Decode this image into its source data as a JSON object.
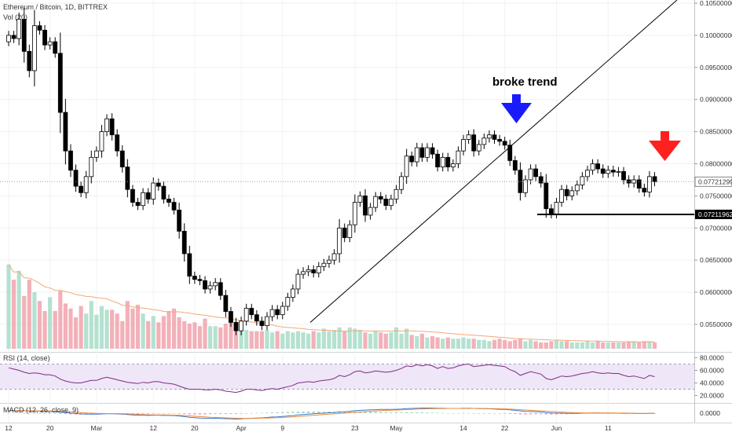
{
  "header": {
    "symbol_line": "Ethereum / Bitcoin, 1D, BITTREX",
    "volume_label": "Vol (20)",
    "rsi_label": "RSI (14, close)",
    "macd_label": "MACD (12, 26, close, 9)"
  },
  "annotations": {
    "broke_trend_text": "broke trend",
    "blue_arrow_color": "#1a1aff",
    "red_arrow_color": "#ff2020"
  },
  "colors": {
    "up_candle": "#ffffff",
    "down_candle": "#000000",
    "vol_up": "#a8dcc8",
    "vol_down": "#f0a3ad",
    "vol_ma": "#f2a878",
    "rsi_line": "#7b2d85",
    "rsi_band": "#efe6f7",
    "macd_line": "#3a78c9",
    "signal_line": "#f08a3a"
  },
  "chart_data": {
    "type": "candlestick",
    "title": "Ethereum / Bitcoin, 1D, BITTREX",
    "price_axis": {
      "ylim": [
        0.0512,
        0.1055
      ],
      "ticks": [
        "0.10500000",
        "0.10000000",
        "0.09500000",
        "0.09000000",
        "0.08500000",
        "0.08000000",
        "0.07500000",
        "0.07000000",
        "0.06500000",
        "0.06000000",
        "0.05500000"
      ],
      "tick_values": [
        0.105,
        0.1,
        0.095,
        0.09,
        0.085,
        0.08,
        0.075,
        0.07,
        0.065,
        0.06,
        0.055
      ],
      "last_price_label": "0.07721299",
      "last_price_value": 0.07721299,
      "support_label": "0.07211962",
      "support_value": 0.07211962
    },
    "x_axis": {
      "ticks": [
        "12",
        "20",
        "Mar",
        "12",
        "20",
        "Apr",
        "9",
        "23",
        "May",
        "14",
        "22",
        "Jun",
        "11"
      ],
      "tick_day_index": [
        0,
        8,
        17,
        28,
        36,
        45,
        53,
        67,
        75,
        88,
        96,
        106,
        116
      ]
    },
    "close": [
      0.1,
      0.0995,
      0.1025,
      0.0975,
      0.0945,
      0.1015,
      0.1008,
      0.0985,
      0.099,
      0.0972,
      0.088,
      0.082,
      0.079,
      0.0765,
      0.0755,
      0.078,
      0.081,
      0.082,
      0.085,
      0.087,
      0.0845,
      0.082,
      0.0795,
      0.076,
      0.074,
      0.0735,
      0.0755,
      0.0745,
      0.077,
      0.0765,
      0.0745,
      0.074,
      0.0728,
      0.0695,
      0.066,
      0.0625,
      0.062,
      0.0618,
      0.0605,
      0.061,
      0.0615,
      0.0595,
      0.057,
      0.0553,
      0.054,
      0.0555,
      0.0575,
      0.0565,
      0.0555,
      0.0548,
      0.0562,
      0.0573,
      0.0565,
      0.0578,
      0.0592,
      0.0605,
      0.0628,
      0.0632,
      0.0635,
      0.063,
      0.064,
      0.0645,
      0.065,
      0.066,
      0.07,
      0.0685,
      0.0705,
      0.074,
      0.075,
      0.072,
      0.0732,
      0.0749,
      0.0745,
      0.0735,
      0.0745,
      0.076,
      0.078,
      0.0812,
      0.0803,
      0.0825,
      0.081,
      0.0825,
      0.0815,
      0.0795,
      0.081,
      0.0795,
      0.08,
      0.082,
      0.0838,
      0.0845,
      0.082,
      0.083,
      0.084,
      0.0845,
      0.0838,
      0.0835,
      0.0829,
      0.0805,
      0.079,
      0.0755,
      0.0775,
      0.0792,
      0.078,
      0.077,
      0.073,
      0.0722,
      0.074,
      0.076,
      0.075,
      0.0758,
      0.0767,
      0.078,
      0.079,
      0.08,
      0.0792,
      0.0785,
      0.079,
      0.0787,
      0.0788,
      0.0775,
      0.077,
      0.0775,
      0.0762,
      0.0756,
      0.078,
      0.0772
    ],
    "volume": [
      0.67,
      0.55,
      0.62,
      0.42,
      0.55,
      0.45,
      0.38,
      0.3,
      0.41,
      0.3,
      0.46,
      0.36,
      0.32,
      0.25,
      0.34,
      0.28,
      0.38,
      0.27,
      0.34,
      0.31,
      0.31,
      0.28,
      0.22,
      0.38,
      0.32,
      0.35,
      0.28,
      0.22,
      0.26,
      0.21,
      0.26,
      0.3,
      0.32,
      0.25,
      0.22,
      0.2,
      0.21,
      0.18,
      0.24,
      0.18,
      0.18,
      0.17,
      0.2,
      0.22,
      0.2,
      0.16,
      0.15,
      0.14,
      0.14,
      0.14,
      0.15,
      0.13,
      0.14,
      0.12,
      0.14,
      0.13,
      0.14,
      0.13,
      0.12,
      0.14,
      0.13,
      0.16,
      0.14,
      0.15,
      0.17,
      0.14,
      0.17,
      0.16,
      0.15,
      0.13,
      0.12,
      0.14,
      0.13,
      0.12,
      0.13,
      0.17,
      0.12,
      0.16,
      0.11,
      0.1,
      0.12,
      0.09,
      0.1,
      0.09,
      0.08,
      0.09,
      0.08,
      0.08,
      0.09,
      0.08,
      0.08,
      0.07,
      0.07,
      0.06,
      0.07,
      0.08,
      0.07,
      0.06,
      0.07,
      0.08,
      0.06,
      0.07,
      0.06,
      0.05,
      0.05,
      0.06,
      0.07,
      0.06,
      0.06,
      0.05,
      0.05,
      0.05,
      0.06,
      0.05,
      0.06,
      0.05,
      0.05,
      0.05,
      0.05,
      0.05,
      0.06,
      0.06,
      0.05,
      0.06,
      0.06,
      0.05
    ],
    "rsi_axis": {
      "ticks": [
        "80.0000",
        "60.0000",
        "40.0000",
        "20.0000"
      ],
      "tick_values": [
        80,
        60,
        40,
        20
      ],
      "bands": [
        30,
        70
      ]
    },
    "rsi": [
      64,
      62,
      60,
      57,
      55,
      56,
      55,
      53,
      53,
      51,
      46,
      43,
      41,
      40,
      40,
      42,
      44,
      44,
      47,
      49,
      47,
      45,
      43,
      41,
      40,
      39,
      41,
      40,
      42,
      42,
      40,
      39,
      38,
      35,
      32,
      30,
      30,
      30,
      29,
      29,
      30,
      29,
      27,
      26,
      25,
      27,
      30,
      30,
      29,
      28,
      30,
      31,
      30,
      32,
      34,
      36,
      40,
      41,
      42,
      41,
      43,
      44,
      45,
      47,
      52,
      50,
      53,
      58,
      59,
      56,
      57,
      59,
      58,
      57,
      58,
      60,
      63,
      67,
      66,
      69,
      67,
      69,
      67,
      63,
      66,
      63,
      64,
      67,
      69,
      70,
      66,
      67,
      68,
      69,
      68,
      67,
      66,
      61,
      58,
      52,
      55,
      58,
      56,
      54,
      47,
      45,
      48,
      51,
      50,
      51,
      53,
      55,
      56,
      58,
      56,
      55,
      56,
      55,
      55,
      52,
      50,
      51,
      49,
      47,
      52,
      50
    ],
    "macd_axis": {
      "ticks": [
        "0.0000"
      ],
      "tick_values": [
        0
      ]
    },
    "macd": [
      0.0012,
      0.0013,
      0.0013,
      0.0012,
      0.0011,
      0.0011,
      0.001,
      0.0009,
      0.0008,
      0.0007,
      0.0005,
      0.0003,
      0.0,
      -0.0002,
      -0.0004,
      -0.0005,
      -0.0005,
      -0.0005,
      -0.0004,
      -0.0003,
      -0.0003,
      -0.0004,
      -0.0005,
      -0.0007,
      -0.0009,
      -0.001,
      -0.001,
      -0.0011,
      -0.001,
      -0.001,
      -0.0011,
      -0.0011,
      -0.0012,
      -0.0014,
      -0.0017,
      -0.002,
      -0.0022,
      -0.0024,
      -0.0025,
      -0.0025,
      -0.0025,
      -0.0026,
      -0.0027,
      -0.0028,
      -0.0029,
      -0.0028,
      -0.0026,
      -0.0025,
      -0.0024,
      -0.0023,
      -0.0021,
      -0.0019,
      -0.0018,
      -0.0016,
      -0.0014,
      -0.0012,
      -0.0009,
      -0.0007,
      -0.0005,
      -0.0003,
      -0.0001,
      0.0,
      0.0002,
      0.0003,
      0.0006,
      0.0007,
      0.0009,
      0.0012,
      0.0014,
      0.0015,
      0.0016,
      0.0017,
      0.0018,
      0.0018,
      0.0018,
      0.0019,
      0.002,
      0.0022,
      0.0023,
      0.0024,
      0.0025,
      0.0025,
      0.0025,
      0.0024,
      0.0024,
      0.0023,
      0.0023,
      0.0023,
      0.0024,
      0.0024,
      0.0023,
      0.0022,
      0.0022,
      0.0021,
      0.002,
      0.0019,
      0.0018,
      0.0016,
      0.0014,
      0.0011,
      0.0009,
      0.0008,
      0.0007,
      0.0006,
      0.0003,
      0.0001,
      0.0,
      0.0,
      -0.0001,
      -0.0001,
      -0.0001,
      0.0,
      0.0,
      0.0001,
      0.0001,
      0.0,
      0.0,
      0.0,
      0.0,
      -0.0001,
      -0.0001,
      -0.0001,
      -0.0002,
      -0.0002,
      -0.0001,
      -0.0001
    ]
  }
}
